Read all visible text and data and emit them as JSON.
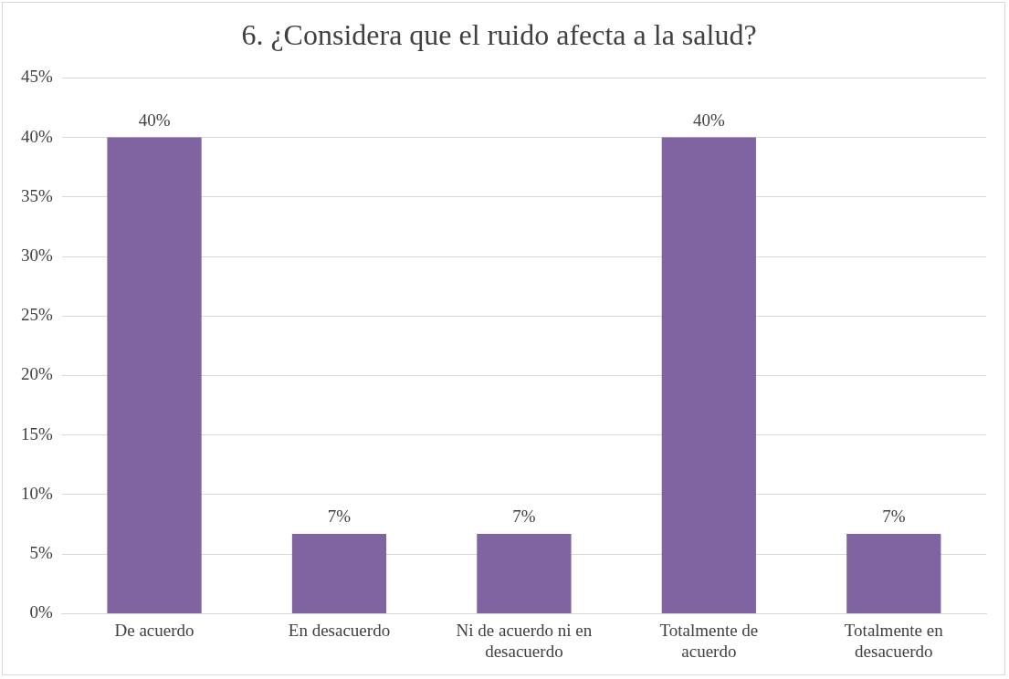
{
  "chart_data": {
    "type": "bar",
    "title": "6. ¿Considera que el ruido afecta a la salud?",
    "categories": [
      "De acuerdo",
      "En desacuerdo",
      "Ni de acuerdo ni en desacuerdo",
      "Totalmente de acuerdo",
      "Totalmente en desacuerdo"
    ],
    "values": [
      40,
      6.7,
      6.7,
      40,
      6.7
    ],
    "value_labels": [
      "40%",
      "7%",
      "7%",
      "40%",
      "7%"
    ],
    "color": "#8064a2",
    "ylim": [
      0,
      45
    ],
    "yticks": [
      {
        "value": 0,
        "label": "0%"
      },
      {
        "value": 5,
        "label": "5%"
      },
      {
        "value": 10,
        "label": "10%"
      },
      {
        "value": 15,
        "label": "15%"
      },
      {
        "value": 20,
        "label": "20%"
      },
      {
        "value": 25,
        "label": "25%"
      },
      {
        "value": 30,
        "label": "30%"
      },
      {
        "value": 35,
        "label": "35%"
      },
      {
        "value": 40,
        "label": "40%"
      },
      {
        "value": 45,
        "label": "45%"
      }
    ],
    "grid": "y",
    "legend": false
  }
}
